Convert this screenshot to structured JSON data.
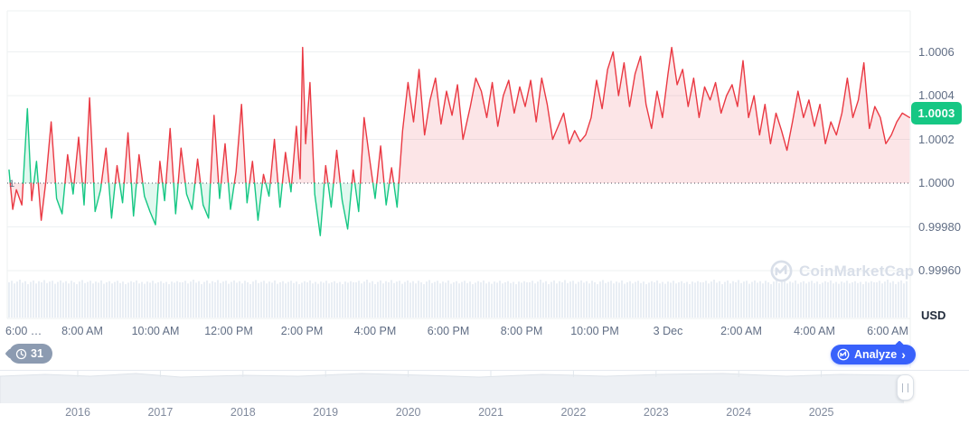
{
  "y_axis": {
    "labels": [
      "1.0006",
      "1.0004",
      "1.0002",
      "1.0000",
      "0.99980",
      "0.99960"
    ],
    "values": [
      1.0006,
      1.0004,
      1.0002,
      1.0,
      0.9998,
      0.9996
    ],
    "unit": "USD",
    "current_price_label": "1.0003"
  },
  "x_axis": {
    "labels": [
      "6:00 …",
      "8:00 AM",
      "10:00 AM",
      "12:00 PM",
      "2:00 PM",
      "4:00 PM",
      "6:00 PM",
      "8:00 PM",
      "10:00 PM",
      "3 Dec",
      "2:00 AM",
      "4:00 AM",
      "6:00 AM"
    ]
  },
  "baseline_label": "1",
  "history_badge": {
    "count": "31"
  },
  "analyze_button": {
    "label": "Analyze",
    "chevron": "›"
  },
  "watermark": {
    "text": "CoinMarketCap"
  },
  "navigator": {
    "years": [
      "2016",
      "2017",
      "2018",
      "2019",
      "2020",
      "2021",
      "2022",
      "2023",
      "2024",
      "2025"
    ],
    "profile": [
      [
        0,
        30
      ],
      [
        0.05,
        32
      ],
      [
        0.1,
        30
      ],
      [
        0.15,
        33
      ],
      [
        0.2,
        29
      ],
      [
        0.27,
        31
      ],
      [
        0.33,
        30
      ],
      [
        0.4,
        33
      ],
      [
        0.47,
        31
      ],
      [
        0.53,
        29
      ],
      [
        0.6,
        32
      ],
      [
        0.67,
        30
      ],
      [
        0.73,
        32
      ],
      [
        0.8,
        33
      ],
      [
        0.87,
        30
      ],
      [
        0.93,
        32
      ],
      [
        1,
        31
      ]
    ]
  },
  "colors": {
    "green": "#16c784",
    "red": "#ea3943",
    "green_fill": "rgba(22,199,132,0.13)",
    "red_fill": "rgba(234,57,67,0.13)",
    "grid": "#edf0f2",
    "dotted_baseline": "#434c5b",
    "volume_bar": "#e9eef4",
    "nav_fill": "#edf0f4",
    "nav_line": "#dfe4ea",
    "blue": "#3861fb"
  },
  "chart_data": {
    "type": "line",
    "unit": "USD",
    "baseline": 1.0,
    "ylim": [
      0.9995,
      1.0008
    ],
    "x_unit": "hours since 6:00 AM",
    "x_tick_hours": [
      0,
      2,
      4,
      6,
      8,
      10,
      12,
      14,
      16,
      18,
      20,
      22,
      24
    ],
    "y_gridline_values": [
      1.0006,
      1.0004,
      1.0002,
      0.9998,
      0.9996
    ],
    "legend": "off",
    "current_price": 1.0003,
    "series": [
      {
        "name": "price",
        "points": [
          [
            0.0,
            1.00006
          ],
          [
            0.1,
            0.99988
          ],
          [
            0.2,
            0.99997
          ],
          [
            0.35,
            0.9999
          ],
          [
            0.5,
            1.00034
          ],
          [
            0.62,
            0.99992
          ],
          [
            0.75,
            1.0001
          ],
          [
            0.88,
            0.99983
          ],
          [
            1.0,
            1.0
          ],
          [
            1.15,
            1.00028
          ],
          [
            1.3,
            0.99993
          ],
          [
            1.45,
            0.99986
          ],
          [
            1.6,
            1.00013
          ],
          [
            1.75,
            0.99995
          ],
          [
            1.9,
            1.00021
          ],
          [
            2.05,
            0.9999
          ],
          [
            2.2,
            1.00039
          ],
          [
            2.35,
            0.99987
          ],
          [
            2.5,
            0.99997
          ],
          [
            2.65,
            1.00016
          ],
          [
            2.8,
            0.99984
          ],
          [
            2.95,
            1.00008
          ],
          [
            3.1,
            0.99991
          ],
          [
            3.25,
            1.00023
          ],
          [
            3.4,
            0.99985
          ],
          [
            3.55,
            1.00013
          ],
          [
            3.7,
            0.99994
          ],
          [
            3.85,
            0.99987
          ],
          [
            4.0,
            0.99981
          ],
          [
            4.12,
            1.0001
          ],
          [
            4.25,
            0.99992
          ],
          [
            4.4,
            1.00025
          ],
          [
            4.55,
            0.99986
          ],
          [
            4.7,
            1.00016
          ],
          [
            4.85,
            0.99995
          ],
          [
            5.0,
            0.99988
          ],
          [
            5.15,
            1.00011
          ],
          [
            5.3,
            0.9999
          ],
          [
            5.45,
            0.99984
          ],
          [
            5.6,
            1.00031
          ],
          [
            5.75,
            0.99993
          ],
          [
            5.9,
            1.00018
          ],
          [
            6.05,
            0.99988
          ],
          [
            6.2,
            1.00005
          ],
          [
            6.35,
            1.00036
          ],
          [
            6.5,
            0.99991
          ],
          [
            6.65,
            1.0001
          ],
          [
            6.8,
            0.99983
          ],
          [
            6.95,
            1.00004
          ],
          [
            7.1,
            0.99994
          ],
          [
            7.25,
            1.0002
          ],
          [
            7.4,
            0.99989
          ],
          [
            7.55,
            1.00014
          ],
          [
            7.7,
            0.99996
          ],
          [
            7.85,
            1.00026
          ],
          [
            7.95,
            1.00002
          ],
          [
            8.02,
            1.00062
          ],
          [
            8.1,
            1.00018
          ],
          [
            8.22,
            1.00046
          ],
          [
            8.35,
            0.99995
          ],
          [
            8.5,
            0.99976
          ],
          [
            8.65,
            1.00008
          ],
          [
            8.8,
            0.99989
          ],
          [
            8.95,
            1.00015
          ],
          [
            9.1,
            0.99992
          ],
          [
            9.25,
            0.99979
          ],
          [
            9.4,
            1.00006
          ],
          [
            9.55,
            0.99987
          ],
          [
            9.7,
            1.0003
          ],
          [
            9.85,
            1.00011
          ],
          [
            10.0,
            0.99993
          ],
          [
            10.15,
            1.00017
          ],
          [
            10.3,
            0.9999
          ],
          [
            10.45,
            1.00007
          ],
          [
            10.6,
            0.99989
          ],
          [
            10.75,
            1.00024
          ],
          [
            10.9,
            1.00046
          ],
          [
            11.05,
            1.00028
          ],
          [
            11.2,
            1.00052
          ],
          [
            11.35,
            1.00022
          ],
          [
            11.5,
            1.00038
          ],
          [
            11.65,
            1.00048
          ],
          [
            11.8,
            1.00027
          ],
          [
            11.95,
            1.00042
          ],
          [
            12.1,
            1.00031
          ],
          [
            12.25,
            1.00045
          ],
          [
            12.4,
            1.0002
          ],
          [
            12.6,
            1.00035
          ],
          [
            12.75,
            1.00048
          ],
          [
            12.9,
            1.00042
          ],
          [
            13.05,
            1.0003
          ],
          [
            13.2,
            1.00046
          ],
          [
            13.35,
            1.00026
          ],
          [
            13.5,
            1.0004
          ],
          [
            13.65,
            1.00047
          ],
          [
            13.8,
            1.00032
          ],
          [
            13.95,
            1.00044
          ],
          [
            14.1,
            1.00035
          ],
          [
            14.25,
            1.00047
          ],
          [
            14.4,
            1.00028
          ],
          [
            14.55,
            1.00048
          ],
          [
            14.7,
            1.00036
          ],
          [
            14.85,
            1.0002
          ],
          [
            15.0,
            1.00026
          ],
          [
            15.15,
            1.00032
          ],
          [
            15.3,
            1.00018
          ],
          [
            15.45,
            1.00024
          ],
          [
            15.6,
            1.00019
          ],
          [
            15.75,
            1.00022
          ],
          [
            15.9,
            1.0003
          ],
          [
            16.05,
            1.00047
          ],
          [
            16.2,
            1.00034
          ],
          [
            16.35,
            1.00052
          ],
          [
            16.5,
            1.0006
          ],
          [
            16.65,
            1.0004
          ],
          [
            16.8,
            1.00055
          ],
          [
            16.95,
            1.00035
          ],
          [
            17.1,
            1.0005
          ],
          [
            17.25,
            1.00058
          ],
          [
            17.4,
            1.00036
          ],
          [
            17.55,
            1.00025
          ],
          [
            17.7,
            1.00042
          ],
          [
            17.85,
            1.0003
          ],
          [
            18.0,
            1.0005
          ],
          [
            18.1,
            1.00062
          ],
          [
            18.25,
            1.00045
          ],
          [
            18.4,
            1.00052
          ],
          [
            18.55,
            1.00035
          ],
          [
            18.7,
            1.00048
          ],
          [
            18.85,
            1.0003
          ],
          [
            19.0,
            1.00044
          ],
          [
            19.15,
            1.00038
          ],
          [
            19.3,
            1.00046
          ],
          [
            19.45,
            1.00032
          ],
          [
            19.6,
            1.0004
          ],
          [
            19.75,
            1.00045
          ],
          [
            19.9,
            1.00035
          ],
          [
            20.05,
            1.00056
          ],
          [
            20.2,
            1.0003
          ],
          [
            20.35,
            1.0004
          ],
          [
            20.5,
            1.00022
          ],
          [
            20.65,
            1.00036
          ],
          [
            20.8,
            1.00018
          ],
          [
            20.95,
            1.00032
          ],
          [
            21.1,
            1.00024
          ],
          [
            21.25,
            1.00015
          ],
          [
            21.4,
            1.00028
          ],
          [
            21.55,
            1.00042
          ],
          [
            21.7,
            1.0003
          ],
          [
            21.85,
            1.00038
          ],
          [
            22.0,
            1.00026
          ],
          [
            22.15,
            1.00036
          ],
          [
            22.3,
            1.00018
          ],
          [
            22.45,
            1.00028
          ],
          [
            22.6,
            1.00022
          ],
          [
            22.75,
            1.00032
          ],
          [
            22.9,
            1.00048
          ],
          [
            23.05,
            1.0003
          ],
          [
            23.2,
            1.00038
          ],
          [
            23.35,
            1.00055
          ],
          [
            23.5,
            1.00025
          ],
          [
            23.65,
            1.00035
          ],
          [
            23.8,
            1.0003
          ],
          [
            23.95,
            1.00018
          ],
          [
            24.1,
            1.00022
          ],
          [
            24.25,
            1.00028
          ],
          [
            24.4,
            1.00032
          ],
          [
            24.6,
            1.0003
          ]
        ]
      }
    ],
    "volume_profile": [
      0.93,
      0.97,
      0.9,
      0.95,
      1.0,
      0.92,
      0.96,
      0.88,
      0.94,
      0.98,
      0.9,
      0.96,
      0.93,
      0.99,
      0.91,
      0.95,
      0.97,
      0.89,
      0.94,
      0.98,
      0.92,
      0.96,
      0.9,
      0.97,
      0.93,
      0.88,
      0.95,
      0.99,
      0.91,
      0.94,
      0.97,
      0.9,
      0.95,
      0.92,
      0.98,
      0.89,
      0.93,
      0.96,
      0.9,
      0.94,
      0.97,
      0.91,
      0.95,
      0.88,
      0.92,
      0.96,
      0.93,
      0.98,
      0.9,
      0.94,
      0.89,
      0.95,
      0.92,
      0.97,
      0.9,
      0.93,
      0.96,
      0.91,
      0.94,
      0.88,
      0.95,
      0.92,
      0.96,
      0.93
    ]
  }
}
